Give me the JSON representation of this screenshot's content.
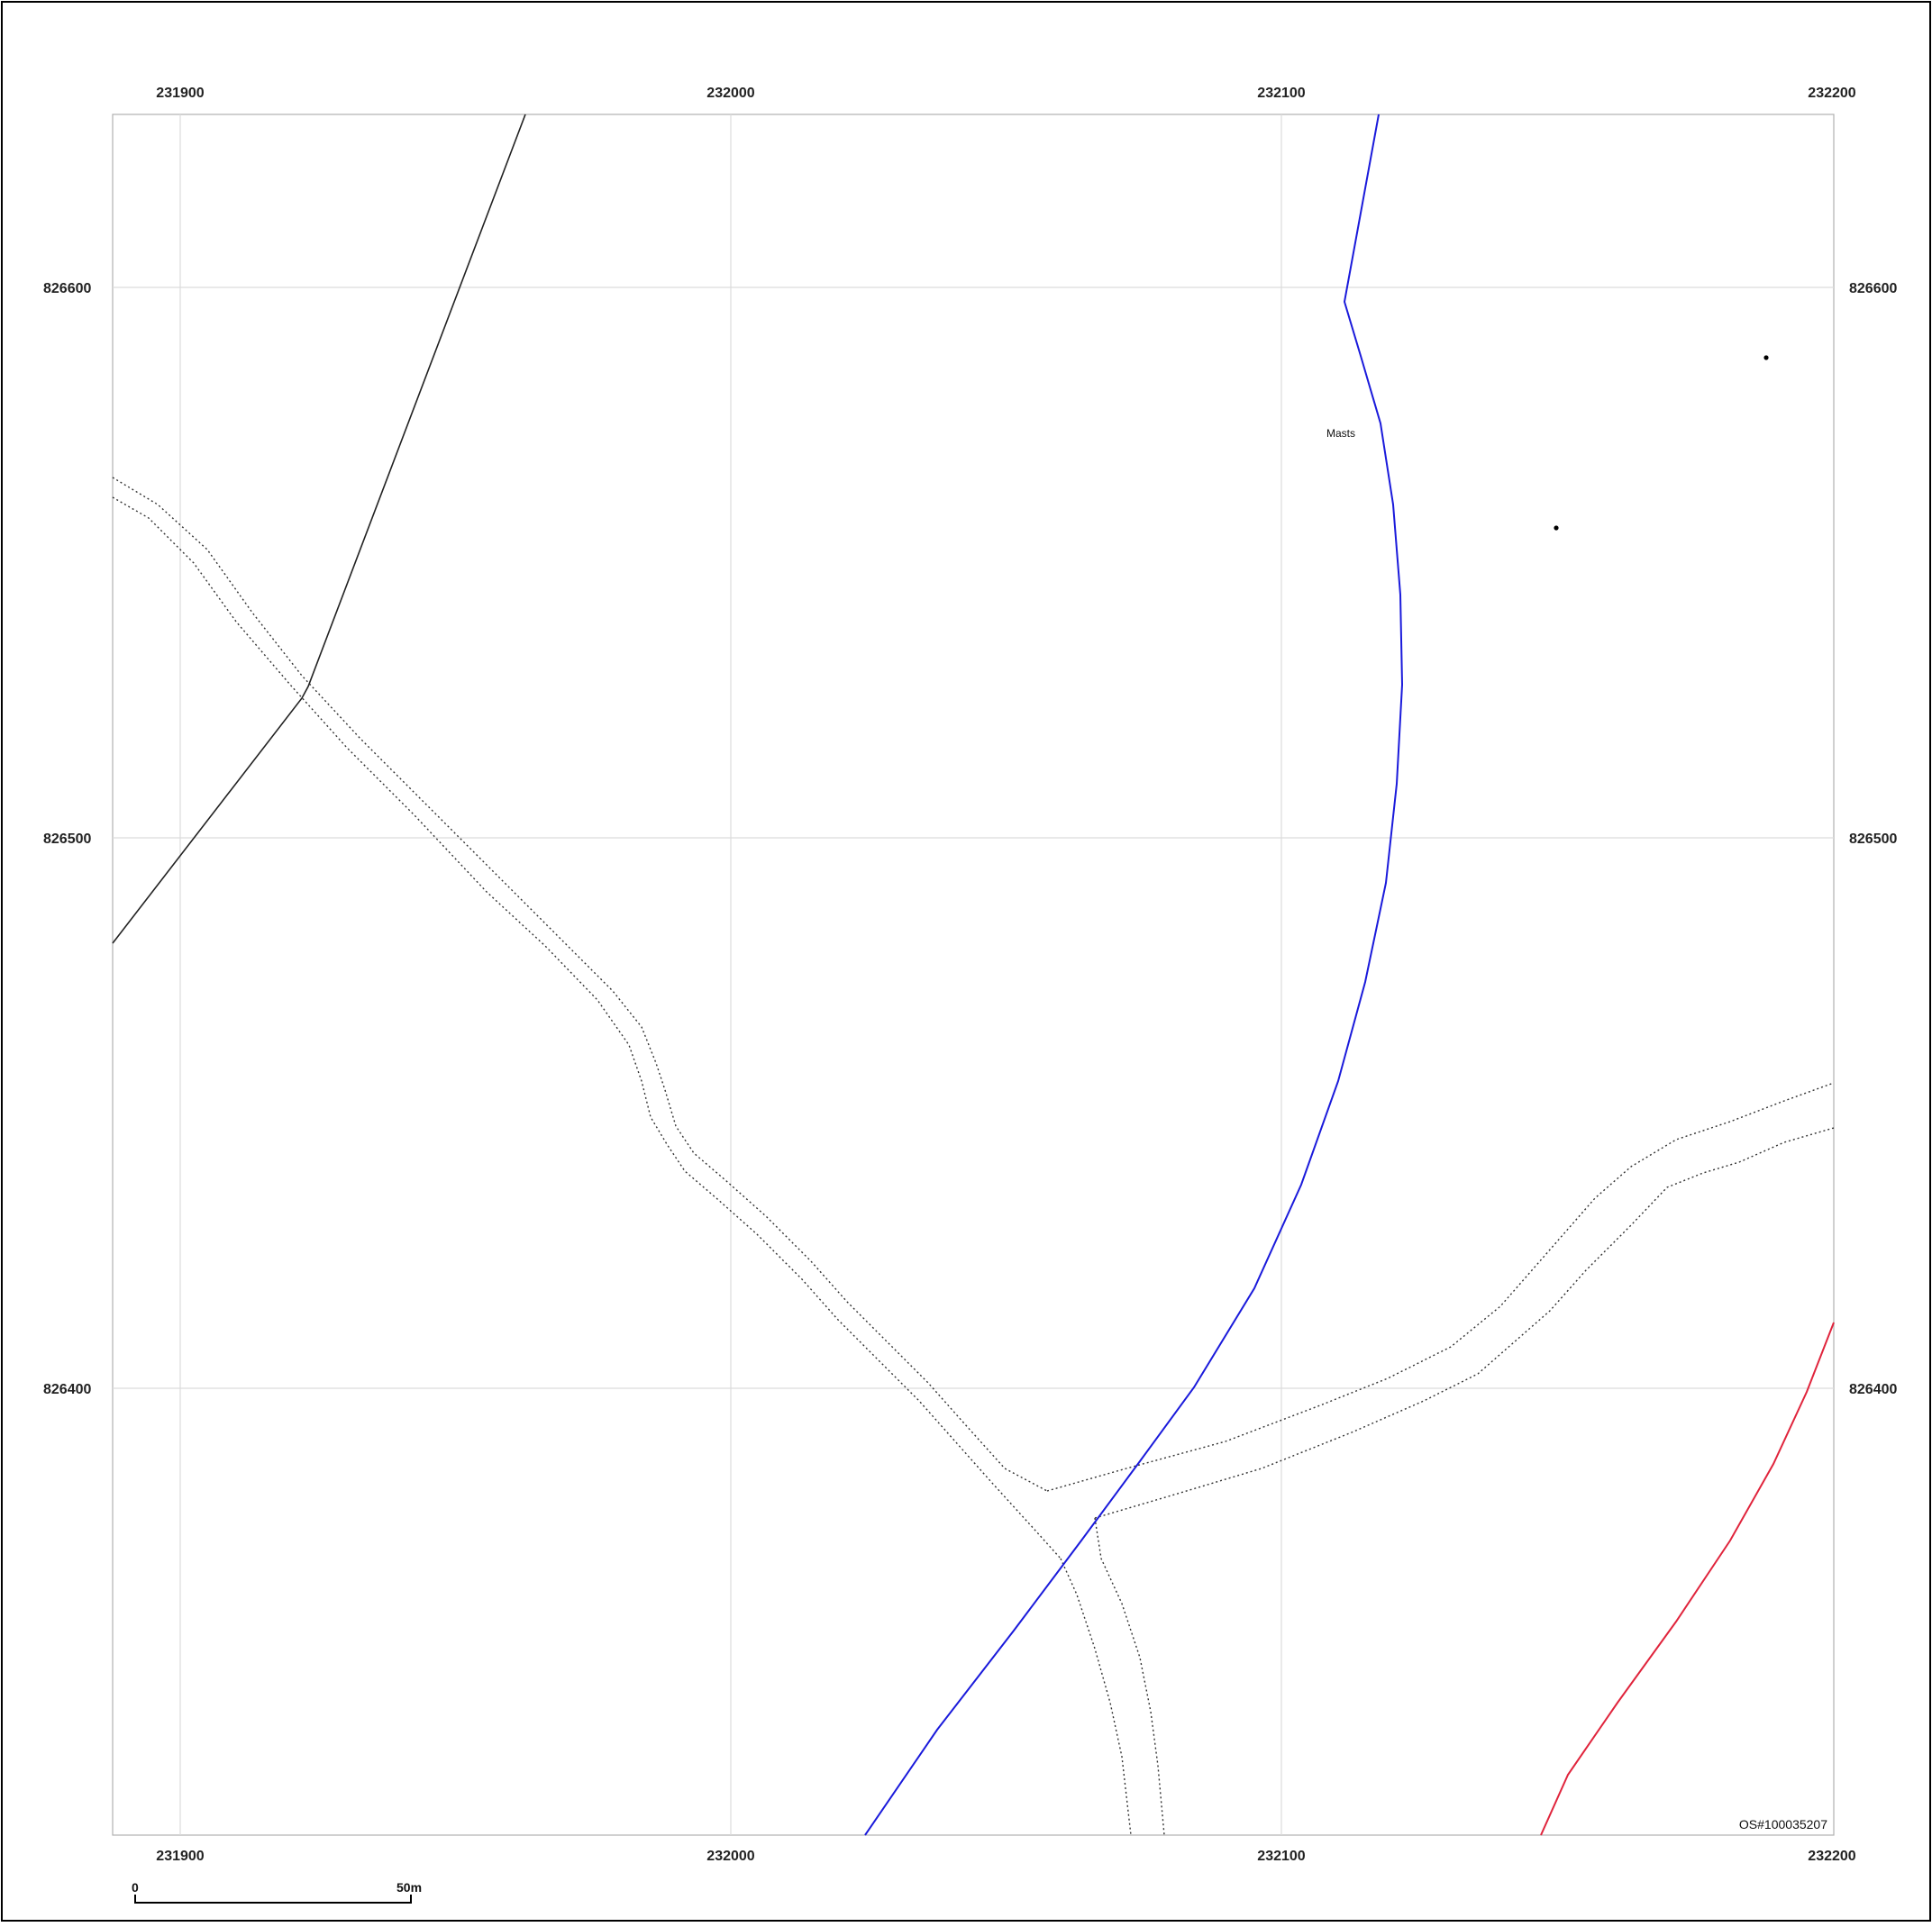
{
  "map": {
    "easting_labels": [
      "231900",
      "232000",
      "232100",
      "232200"
    ],
    "northing_labels": [
      "826600",
      "826500",
      "826400"
    ],
    "feature_label": "Masts",
    "copyright": "OS#100035207",
    "scale_bar": {
      "start_label": "0",
      "end_label": "50m"
    },
    "colors": {
      "main_boundary": "#1a1adb",
      "secondary_boundary": "#e0243c",
      "field_boundary": "#222222",
      "grid": "#dcdcdc",
      "track": "#333333"
    },
    "point_features": [
      "mast-point",
      "mast-point"
    ],
    "track_style": "dotted double line"
  }
}
